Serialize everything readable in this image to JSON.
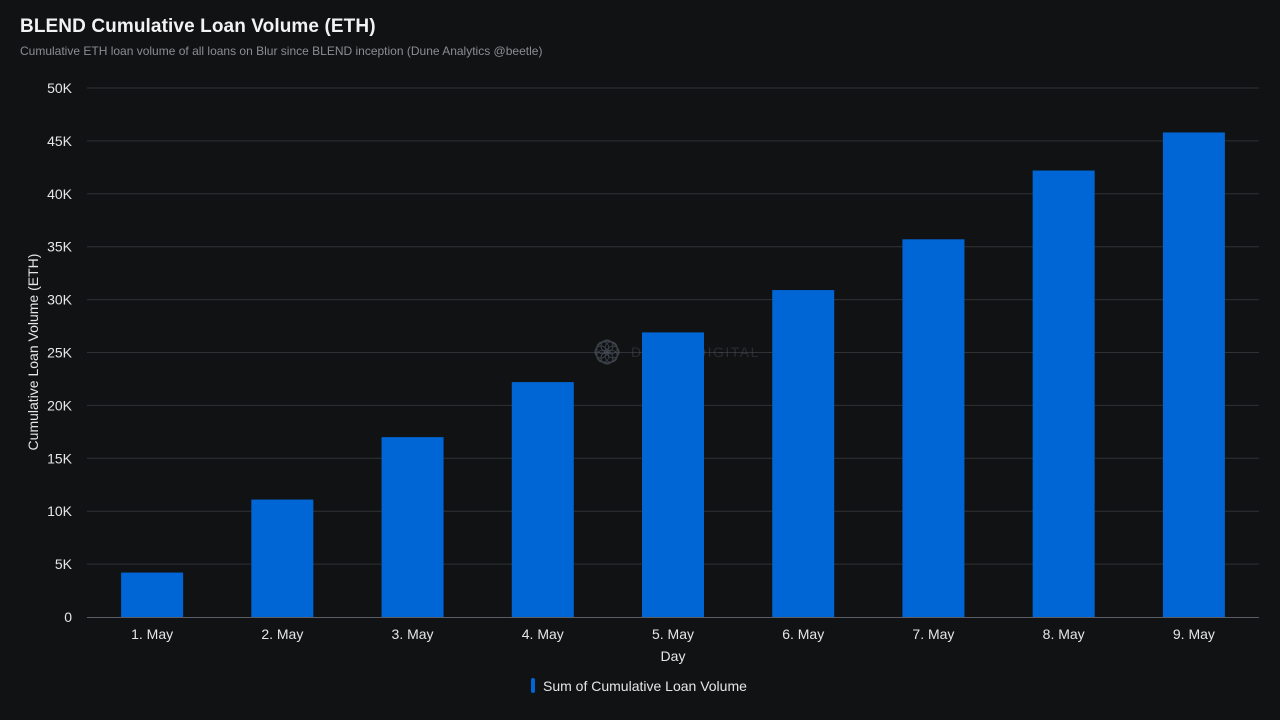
{
  "header": {
    "title": "BLEND Cumulative Loan Volume (ETH)",
    "subtitle": "Cumulative ETH loan volume of all loans on Blur since BLEND inception (Dune Analytics @beetle)"
  },
  "watermark": {
    "text": "DELPHI DIGITAL"
  },
  "legend": {
    "label": "Sum of Cumulative Loan Volume",
    "placement": "bottom-center"
  },
  "colors": {
    "background": "#111214",
    "bar": "#0066d6",
    "grid": "#2e3136",
    "text": "#e6e6e6"
  },
  "chart_data": {
    "type": "bar",
    "title": "BLEND Cumulative Loan Volume (ETH)",
    "xlabel": "Day",
    "ylabel": "Cumulative Loan Volume (ETH)",
    "categories": [
      "1. May",
      "2. May",
      "3. May",
      "4. May",
      "5. May",
      "6. May",
      "7. May",
      "8. May",
      "9. May"
    ],
    "series": [
      {
        "name": "Sum of Cumulative Loan Volume",
        "values": [
          4200,
          11100,
          17000,
          22200,
          26900,
          30900,
          35700,
          42200,
          45800
        ]
      }
    ],
    "ylim": [
      0,
      50000
    ],
    "yticks": [
      0,
      5000,
      10000,
      15000,
      20000,
      25000,
      30000,
      35000,
      40000,
      45000,
      50000
    ],
    "ytick_labels": [
      "0",
      "5K",
      "10K",
      "15K",
      "20K",
      "25K",
      "30K",
      "35K",
      "40K",
      "45K",
      "50K"
    ],
    "grid": true,
    "legend_placement": "bottom-center"
  }
}
